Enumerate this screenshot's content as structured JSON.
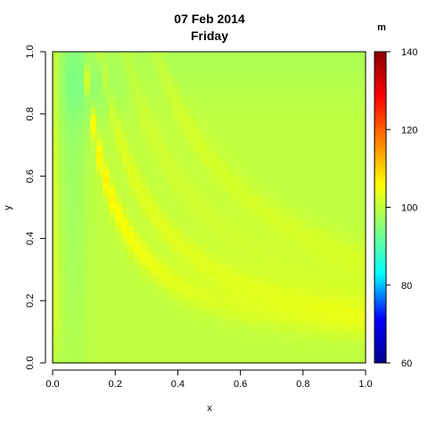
{
  "chart_data": {
    "type": "heatmap",
    "title": "07 Feb 2014",
    "subtitle": "Friday",
    "xlabel": "x",
    "ylabel": "y",
    "xlim": [
      0,
      1
    ],
    "ylim": [
      0,
      1
    ],
    "x_ticks": [
      0.0,
      0.2,
      0.4,
      0.6,
      0.8,
      1.0
    ],
    "y_ticks": [
      0.0,
      0.2,
      0.4,
      0.6,
      0.8,
      1.0
    ],
    "x_tick_labels": [
      "0.0",
      "0.2",
      "0.4",
      "0.6",
      "0.8",
      "1.0"
    ],
    "y_tick_labels": [
      "0.0",
      "0.2",
      "0.4",
      "0.6",
      "0.8",
      "1.0"
    ],
    "grid": false,
    "nx": 50,
    "ny": 50,
    "value_model": {
      "background": 100,
      "left_edge_strip": 103.5,
      "left_band_min": 95.5,
      "ridge_peak": 107,
      "inner_band": 103,
      "outer_band": 101.5,
      "top_right_region": 97
    },
    "colorbar": {
      "label": "m",
      "min": 60,
      "max": 140,
      "ticks": [
        60,
        80,
        100,
        120,
        140
      ],
      "tick_labels": [
        "60",
        "80",
        "100",
        "120",
        "140"
      ],
      "colormap": [
        "#00008B",
        "#0000FF",
        "#00FFFF",
        "#80FF80",
        "#FFFF00",
        "#FF8000",
        "#FF0000",
        "#8B0000"
      ]
    }
  }
}
